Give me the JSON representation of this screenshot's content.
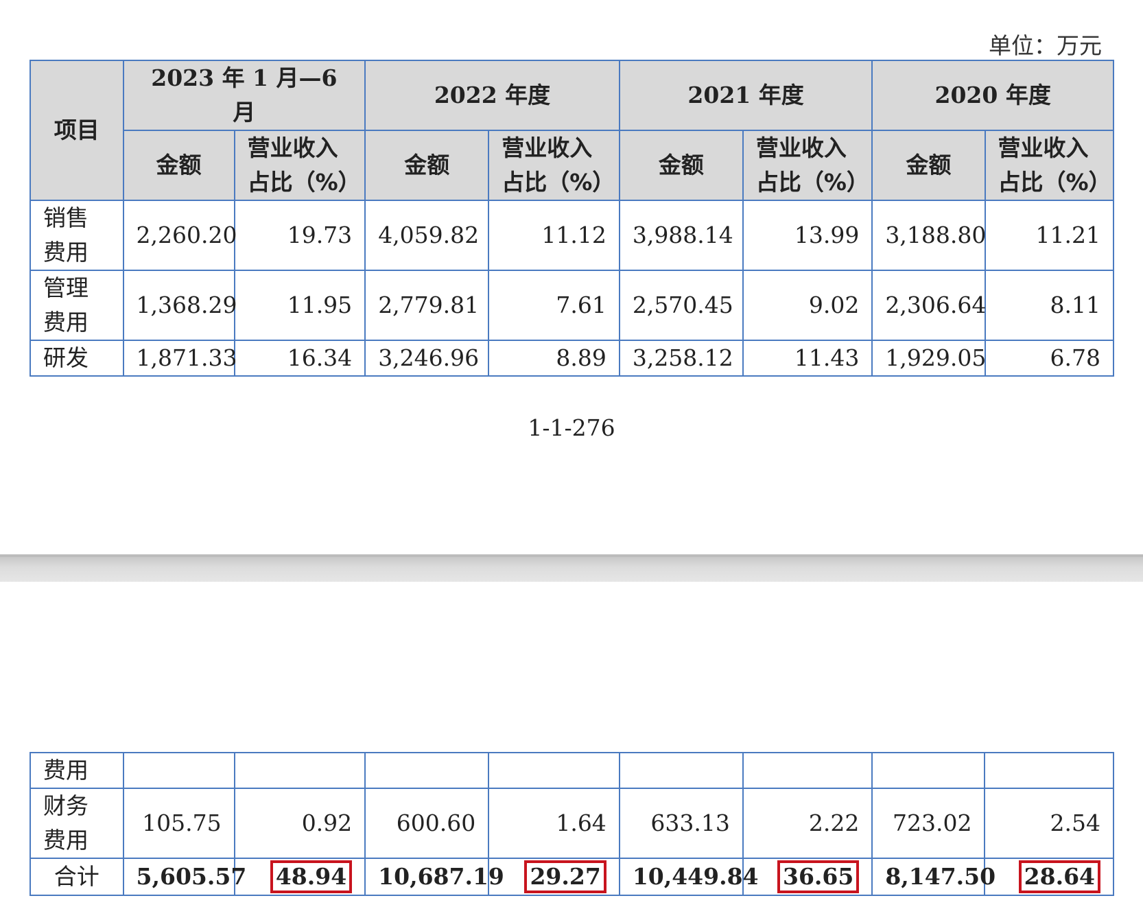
{
  "unit_label": "单位：万元",
  "header": {
    "item": "项目",
    "periods": [
      "2023 年 1 月—6 月",
      "2022 年度",
      "2021 年度",
      "2020 年度"
    ],
    "amount": "金额",
    "ratio_line1": "营业收入",
    "ratio_line2": "占比（%）"
  },
  "rows_page1": [
    {
      "label1": "销售",
      "label2": "费用",
      "v": [
        "2,260.20",
        "19.73",
        "4,059.82",
        "11.12",
        "3,988.14",
        "13.99",
        "3,188.80",
        "11.21"
      ]
    },
    {
      "label1": "管理",
      "label2": "费用",
      "v": [
        "1,368.29",
        "11.95",
        "2,779.81",
        "7.61",
        "2,570.45",
        "9.02",
        "2,306.64",
        "8.11"
      ]
    },
    {
      "label1": "研发",
      "label2": "",
      "v": [
        "1,871.33",
        "16.34",
        "3,246.96",
        "8.89",
        "3,258.12",
        "11.43",
        "1,929.05",
        "6.78"
      ]
    }
  ],
  "page_number": "1-1-276",
  "rows_page2": [
    {
      "label1": "费用",
      "label2": "",
      "v": [
        "",
        "",
        "",
        "",
        "",
        "",
        "",
        ""
      ]
    },
    {
      "label1": "财务",
      "label2": "费用",
      "v": [
        "105.75",
        "0.92",
        "600.60",
        "1.64",
        "633.13",
        "2.22",
        "723.02",
        "2.54"
      ]
    }
  ],
  "total": {
    "label": "合计",
    "v": [
      "5,605.57",
      "48.94",
      "10,687.19",
      "29.27",
      "10,449.84",
      "36.65",
      "8,147.50",
      "28.64"
    ]
  }
}
